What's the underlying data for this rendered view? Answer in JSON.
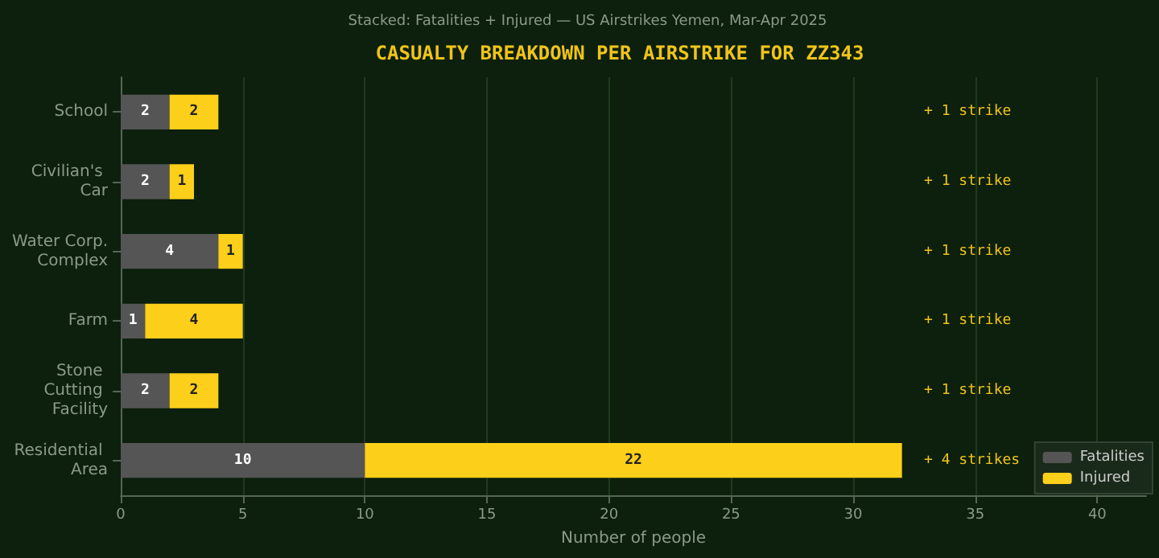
{
  "chart_data": {
    "type": "bar",
    "orientation": "horizontal",
    "stacked": true,
    "title": "CASUALTY BREAKDOWN PER AIRSTRIKE FOR ZZ343",
    "subtitle": "Stacked: Fatalities + Injured — US Airstrikes Yemen, Mar-Apr 2025",
    "xlabel": "Number of people",
    "categories": [
      "School",
      "Civilian's Car",
      "Water Corp. Complex",
      "Farm",
      "Stone Cutting Facility",
      "Residential Area"
    ],
    "series": [
      {
        "name": "Fatalities",
        "color": "#555555",
        "values": [
          2,
          2,
          4,
          1,
          2,
          10
        ]
      },
      {
        "name": "Injured",
        "color": "#fccf1a",
        "values": [
          2,
          1,
          1,
          4,
          2,
          22
        ]
      }
    ],
    "data_labels": true,
    "xlim": [
      0,
      42
    ],
    "xticks": [
      0,
      5,
      10,
      15,
      20,
      25,
      30,
      35,
      40
    ],
    "grid": "x",
    "legend": "bottom right",
    "annotations": [
      "+ 1 strike",
      "+ 1 strike",
      "+ 1 strike",
      "+ 1 strike",
      "+ 1 strike",
      "+ 4 strikes"
    ]
  }
}
